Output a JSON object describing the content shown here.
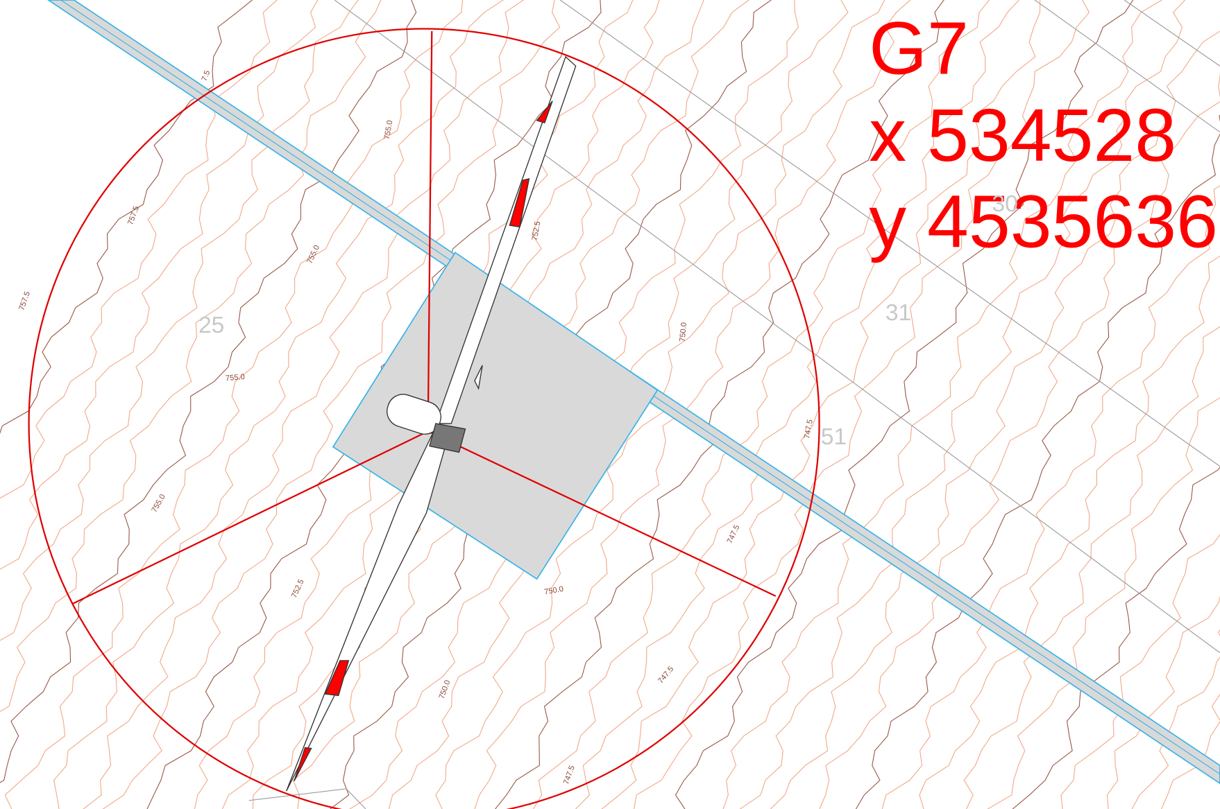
{
  "label": {
    "name": "G7",
    "x": "x 534528",
    "y": "y 4535636"
  },
  "parcels": [
    "25",
    "31",
    "51",
    "30"
  ],
  "contour_labels": [
    "757.5",
    "757.5",
    "755.0",
    "755.0",
    "755.0",
    "755.0",
    "752.5",
    "752.5",
    "750.0",
    "750.0",
    "750.0",
    "747.5",
    "747.5",
    "747.5",
    "747.5",
    "7.5"
  ]
}
